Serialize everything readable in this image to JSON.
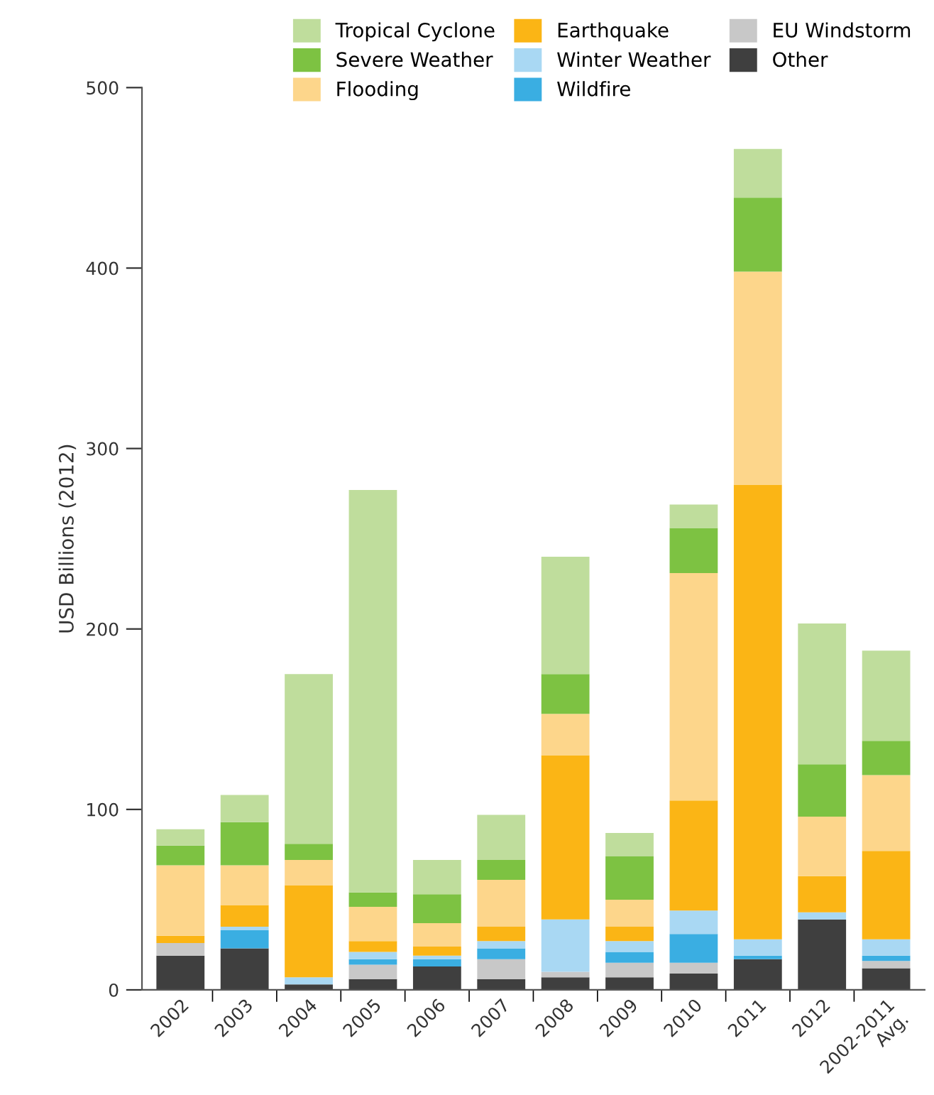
{
  "chart_data": {
    "type": "bar",
    "stacked": true,
    "ylabel": "USD Billions (2012)",
    "categories": [
      "2002",
      "2003",
      "2004",
      "2005",
      "2006",
      "2007",
      "2008",
      "2009",
      "2010",
      "2011",
      "2012",
      "2002-2011\nAvg."
    ],
    "series": [
      {
        "name": "Other",
        "color": "#3f3f3f",
        "values": [
          19,
          23,
          3,
          6,
          13,
          6,
          7,
          7,
          9,
          17,
          39,
          12
        ]
      },
      {
        "name": "EU Windstorm",
        "color": "#c8c8c8",
        "values": [
          7,
          0,
          0,
          8,
          0,
          11,
          3,
          8,
          6,
          0,
          0,
          4
        ]
      },
      {
        "name": "Wildfire",
        "color": "#3aaee2",
        "values": [
          0,
          10,
          0,
          3,
          4,
          6,
          0,
          6,
          16,
          2,
          0,
          3
        ]
      },
      {
        "name": "Winter Weather",
        "color": "#a9d8f3",
        "values": [
          0,
          2,
          4,
          4,
          2,
          4,
          29,
          6,
          13,
          9,
          4,
          9
        ]
      },
      {
        "name": "Earthquake",
        "color": "#fbb515",
        "values": [
          4,
          12,
          51,
          6,
          5,
          8,
          91,
          8,
          61,
          252,
          20,
          49
        ]
      },
      {
        "name": "Flooding",
        "color": "#fdd68b",
        "values": [
          39,
          22,
          14,
          19,
          13,
          26,
          23,
          15,
          126,
          118,
          33,
          42
        ]
      },
      {
        "name": "Severe Weather",
        "color": "#7dc242",
        "values": [
          11,
          24,
          9,
          8,
          16,
          11,
          22,
          24,
          25,
          41,
          29,
          19
        ]
      },
      {
        "name": "Tropical Cyclone",
        "color": "#bfdd9c",
        "values": [
          9,
          15,
          94,
          223,
          19,
          25,
          65,
          13,
          13,
          27,
          78,
          50
        ]
      }
    ],
    "ylim": [
      0,
      500
    ],
    "yticks": [
      0,
      100,
      200,
      300,
      400,
      500
    ],
    "grid": false,
    "legend": "top right"
  }
}
